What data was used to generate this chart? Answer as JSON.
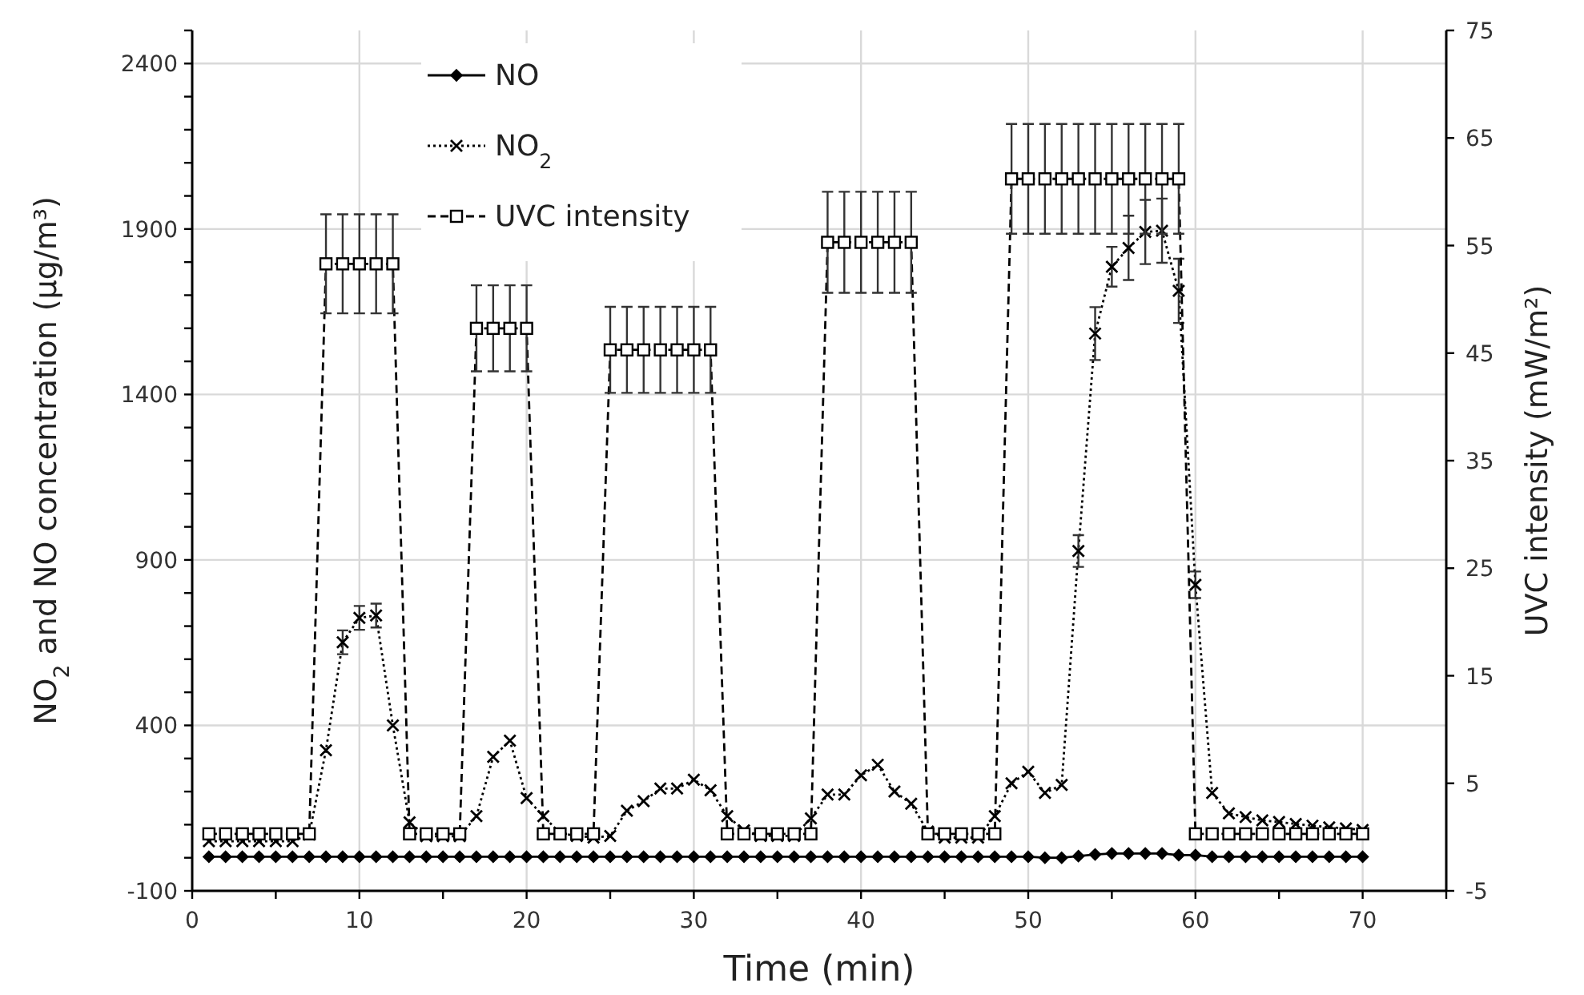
{
  "chart_data": {
    "type": "line",
    "xlabel": "Time (min)",
    "ylabel": "NO$_{2}$ and NO concentration (µg/m³)",
    "y2label": "UVC intensity (mW/m²)",
    "x": [
      1,
      2,
      3,
      4,
      5,
      6,
      7,
      8,
      9,
      10,
      11,
      12,
      13,
      14,
      15,
      16,
      17,
      18,
      19,
      20,
      21,
      22,
      23,
      24,
      25,
      26,
      27,
      28,
      29,
      30,
      31,
      32,
      33,
      34,
      35,
      36,
      37,
      38,
      39,
      40,
      41,
      42,
      43,
      44,
      45,
      46,
      47,
      48,
      49,
      50,
      51,
      52,
      53,
      54,
      55,
      56,
      57,
      58,
      59,
      60,
      61,
      62,
      63,
      64,
      65,
      66,
      67,
      68,
      69,
      70
    ],
    "xlim": [
      0,
      75
    ],
    "xticks": [
      0,
      {
        "value": 5,
        "label": null
      },
      10,
      {
        "value": 15,
        "label": null
      },
      20,
      {
        "value": 25,
        "label": null
      },
      30,
      {
        "value": 35,
        "label": null
      },
      40,
      {
        "value": 45,
        "label": null
      },
      50,
      {
        "value": 55,
        "label": null
      },
      60,
      {
        "value": 65,
        "label": null
      },
      70,
      {
        "value": 75,
        "label": null
      }
    ],
    "ylim": [
      -100,
      2500
    ],
    "yticks": [
      -100,
      {
        "value": 0,
        "label": null
      },
      {
        "value": 100,
        "label": null
      },
      {
        "value": 200,
        "label": null
      },
      {
        "value": 300,
        "label": null
      },
      400,
      {
        "value": 500,
        "label": null
      },
      {
        "value": 600,
        "label": null
      },
      {
        "value": 700,
        "label": null
      },
      {
        "value": 800,
        "label": null
      },
      900,
      {
        "value": 1000,
        "label": null
      },
      {
        "value": 1100,
        "label": null
      },
      {
        "value": 1200,
        "label": null
      },
      {
        "value": 1300,
        "label": null
      },
      1400,
      {
        "value": 1500,
        "label": null
      },
      {
        "value": 1600,
        "label": null
      },
      {
        "value": 1700,
        "label": null
      },
      {
        "value": 1800,
        "label": null
      },
      1900,
      {
        "value": 2000,
        "label": null
      },
      {
        "value": 2100,
        "label": null
      },
      {
        "value": 2200,
        "label": null
      },
      {
        "value": 2300,
        "label": null
      },
      2400,
      {
        "value": 2500,
        "label": null
      }
    ],
    "y2lim": [
      -5,
      75
    ],
    "y2ticks": [
      -5,
      5,
      15,
      25,
      35,
      45,
      55,
      65,
      75
    ],
    "grid": true,
    "legend": "top left",
    "series": [
      {
        "name": "NO",
        "color": "#000000",
        "marker": "diamond",
        "line_style": "solid",
        "values": [
          3,
          3,
          3,
          3,
          3,
          3,
          3,
          3,
          3,
          3,
          3,
          3,
          3,
          3,
          3,
          3,
          3,
          3,
          3,
          3,
          3,
          3,
          3,
          3,
          3,
          3,
          3,
          3,
          3,
          3,
          3,
          3,
          3,
          3,
          3,
          3,
          3,
          3,
          3,
          3,
          3,
          3,
          3,
          3,
          3,
          3,
          3,
          3,
          3,
          3,
          0,
          0,
          5,
          10,
          13,
          13,
          13,
          13,
          8,
          8,
          3,
          3,
          3,
          3,
          3,
          3,
          3,
          3,
          3,
          3
        ]
      },
      {
        "name": "NO$_{2}$",
        "color": "#000000",
        "marker": "cross",
        "line_style": "dotted",
        "values": [
          50,
          50,
          50,
          50,
          50,
          50,
          70,
          325,
          651,
          725,
          732,
          400,
          107,
          65,
          65,
          65,
          126,
          305,
          354,
          180,
          126,
          74,
          66,
          61,
          66,
          142,
          171,
          209,
          209,
          236,
          204,
          126,
          83,
          66,
          66,
          66,
          119,
          191,
          191,
          249,
          281,
          200,
          163,
          79,
          61,
          61,
          61,
          126,
          225,
          260,
          196,
          220,
          927,
          1584,
          1786,
          1843,
          1891,
          1895,
          1713,
          825,
          196,
          134,
          123,
          113,
          108,
          102,
          97,
          92,
          89,
          84
        ],
        "errors": [
          null,
          null,
          null,
          null,
          null,
          null,
          null,
          null,
          36,
          36,
          36,
          null,
          null,
          null,
          null,
          null,
          null,
          null,
          null,
          null,
          null,
          null,
          null,
          null,
          null,
          null,
          null,
          null,
          null,
          null,
          null,
          null,
          null,
          null,
          null,
          null,
          null,
          null,
          null,
          null,
          null,
          null,
          null,
          null,
          null,
          null,
          null,
          null,
          null,
          null,
          null,
          null,
          48,
          80,
          60,
          97,
          97,
          97,
          97,
          40,
          null,
          null,
          null,
          null,
          null,
          null,
          null,
          null,
          null,
          null
        ]
      },
      {
        "name": "UVC intensity",
        "color": "#000000",
        "marker": "square",
        "line_style": "dashed",
        "axis": "y2",
        "values": [
          0.3,
          0.3,
          0.3,
          0.3,
          0.3,
          0.3,
          0.3,
          53.3,
          53.3,
          53.3,
          53.3,
          53.3,
          0.3,
          0.3,
          0.3,
          0.3,
          47.3,
          47.3,
          47.3,
          47.3,
          0.3,
          0.3,
          0.3,
          0.3,
          45.3,
          45.3,
          45.3,
          45.3,
          45.3,
          45.3,
          45.3,
          0.3,
          0.3,
          0.3,
          0.3,
          0.3,
          0.3,
          55.3,
          55.3,
          55.3,
          55.3,
          55.3,
          55.3,
          0.3,
          0.3,
          0.3,
          0.3,
          0.3,
          61.2,
          61.2,
          61.2,
          61.2,
          61.2,
          61.2,
          61.2,
          61.2,
          61.2,
          61.2,
          61.2,
          0.3,
          0.3,
          0.3,
          0.3,
          0.3,
          0.3,
          0.3,
          0.3,
          0.3,
          0.3,
          0.3
        ],
        "errors": [
          null,
          null,
          null,
          null,
          null,
          null,
          null,
          4.6,
          4.6,
          4.6,
          4.6,
          4.6,
          null,
          null,
          null,
          null,
          4,
          4,
          4,
          4,
          null,
          null,
          null,
          null,
          4,
          4,
          4,
          4,
          4,
          4,
          4,
          null,
          null,
          null,
          null,
          null,
          null,
          4.7,
          4.7,
          4.7,
          4.7,
          4.7,
          4.7,
          null,
          null,
          null,
          null,
          null,
          5.1,
          5.1,
          5.1,
          5.1,
          5.1,
          5.1,
          5.1,
          5.1,
          5.1,
          5.1,
          5.1,
          null,
          null,
          null,
          null,
          null,
          null,
          null,
          null,
          null,
          null,
          null
        ]
      }
    ]
  }
}
